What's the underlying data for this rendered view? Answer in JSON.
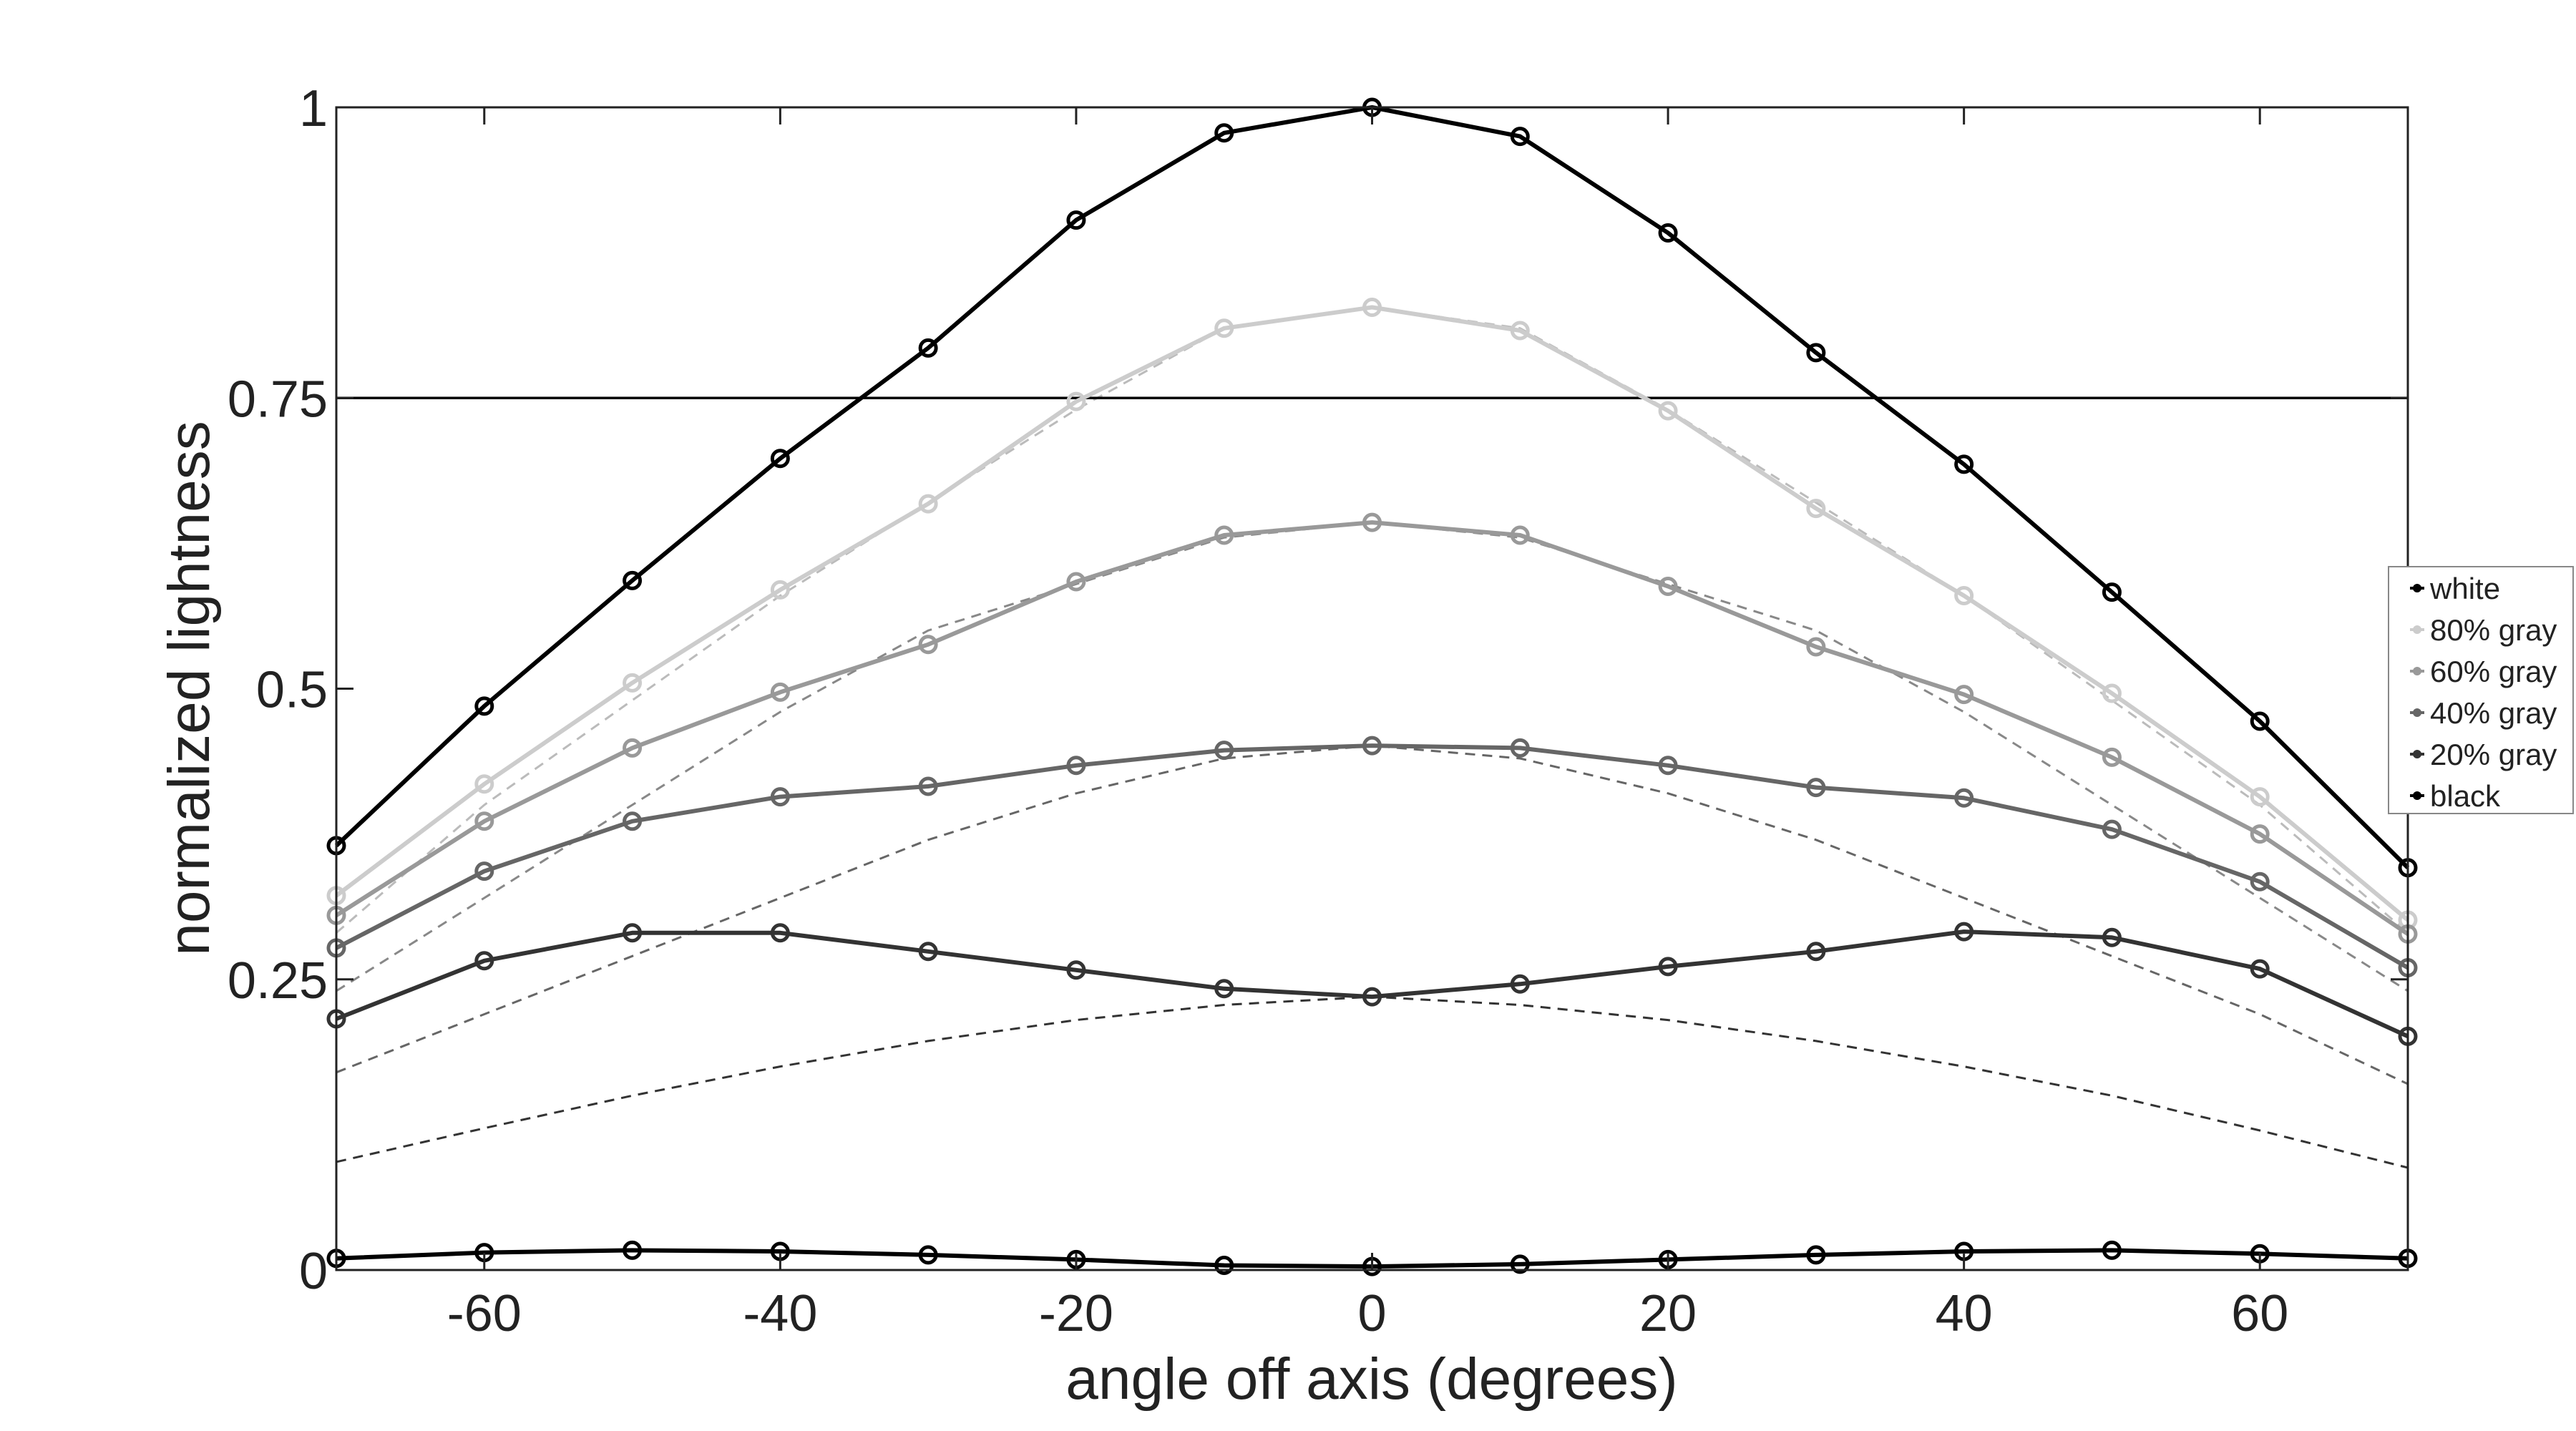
{
  "chart_data": {
    "type": "line",
    "xlabel": "angle off axis (degrees)",
    "ylabel": "normalized lightness",
    "xlim": [
      -70,
      70
    ],
    "ylim": [
      0,
      1
    ],
    "xticks": [
      -60,
      -40,
      -20,
      0,
      20,
      40,
      60
    ],
    "yticks": [
      0,
      0.25,
      0.5,
      0.75,
      1
    ],
    "ytick_labels": [
      "0",
      "0.25",
      "0.5",
      "0.75",
      "1"
    ],
    "reference_line": {
      "y": 0.75,
      "color": "#000000"
    },
    "legend_position": "right",
    "x": [
      -70,
      -60,
      -50,
      -40,
      -30,
      -20,
      -10,
      0,
      10,
      20,
      30,
      40,
      50,
      60,
      70
    ],
    "series": [
      {
        "name": "white",
        "color": "#000000",
        "values": [
          0.365,
          0.485,
          0.593,
          0.698,
          0.793,
          0.903,
          0.978,
          1.0,
          0.975,
          0.892,
          0.789,
          0.693,
          0.583,
          0.472,
          0.346
        ]
      },
      {
        "name": "80% gray",
        "color": "#cccccc",
        "values": [
          0.322,
          0.418,
          0.505,
          0.585,
          0.659,
          0.747,
          0.81,
          0.828,
          0.808,
          0.739,
          0.655,
          0.58,
          0.496,
          0.407,
          0.301
        ]
      },
      {
        "name": "60% gray",
        "color": "#999999",
        "values": [
          0.305,
          0.386,
          0.449,
          0.497,
          0.538,
          0.592,
          0.632,
          0.643,
          0.632,
          0.588,
          0.536,
          0.495,
          0.441,
          0.375,
          0.289
        ]
      },
      {
        "name": "40% gray",
        "color": "#666666",
        "values": [
          0.277,
          0.343,
          0.386,
          0.407,
          0.416,
          0.434,
          0.447,
          0.451,
          0.449,
          0.434,
          0.415,
          0.406,
          0.379,
          0.334,
          0.26
        ]
      },
      {
        "name": "20% gray",
        "color": "#333333",
        "values": [
          0.216,
          0.266,
          0.29,
          0.29,
          0.274,
          0.258,
          0.242,
          0.235,
          0.246,
          0.261,
          0.274,
          0.291,
          0.286,
          0.259,
          0.201
        ]
      },
      {
        "name": "black",
        "color": "#000000",
        "values": [
          0.01,
          0.015,
          0.017,
          0.016,
          0.013,
          0.009,
          0.004,
          0.003,
          0.005,
          0.009,
          0.013,
          0.016,
          0.017,
          0.014,
          0.01
        ]
      }
    ],
    "reference_curves": [
      {
        "color": "#bbbbbb",
        "values": [
          0.29,
          0.4,
          0.49,
          0.58,
          0.66,
          0.74,
          0.81,
          0.828,
          0.81,
          0.74,
          0.66,
          0.58,
          0.49,
          0.4,
          0.29
        ]
      },
      {
        "color": "#888888",
        "values": [
          0.24,
          0.32,
          0.4,
          0.48,
          0.55,
          0.59,
          0.63,
          0.643,
          0.63,
          0.59,
          0.55,
          0.48,
          0.4,
          0.32,
          0.24
        ]
      },
      {
        "color": "#666666",
        "values": [
          0.17,
          0.22,
          0.27,
          0.32,
          0.37,
          0.41,
          0.44,
          0.451,
          0.44,
          0.41,
          0.37,
          0.32,
          0.27,
          0.22,
          0.16
        ]
      },
      {
        "color": "#333333",
        "values": [
          0.093,
          0.122,
          0.15,
          0.175,
          0.197,
          0.215,
          0.228,
          0.235,
          0.228,
          0.215,
          0.197,
          0.175,
          0.15,
          0.12,
          0.088
        ]
      }
    ]
  }
}
